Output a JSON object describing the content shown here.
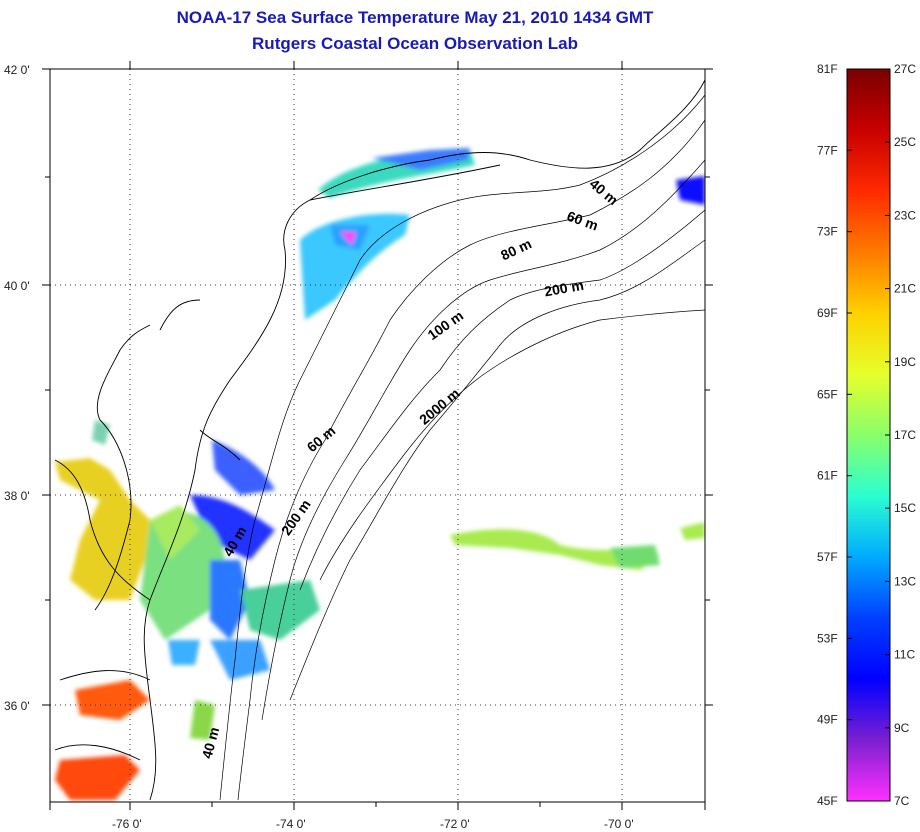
{
  "title_line1": "NOAA-17 Sea Surface Temperature May 21, 2010 1434 GMT",
  "title_line2": "Rutgers Coastal Ocean Observation Lab",
  "map": {
    "lon_ticks": [
      "-76 0'",
      "-74 0'",
      "-72 0'",
      "-70 0'"
    ],
    "lat_ticks": [
      "42 0'",
      "40 0'",
      "38 0'",
      "36 0'"
    ],
    "lon_range": [
      -77,
      -69
    ],
    "lat_range": [
      35,
      42
    ],
    "gridlines": true,
    "contour_labels": [
      "40 m",
      "60 m",
      "80 m",
      "200 m",
      "100 m",
      "2000 m",
      "60 m",
      "200 m",
      "40 m",
      "40 m"
    ]
  },
  "colorbar": {
    "fahrenheit_labels": [
      "81F",
      "77F",
      "73F",
      "69F",
      "65F",
      "61F",
      "57F",
      "53F",
      "49F",
      "45F"
    ],
    "celsius_labels": [
      "27C",
      "25C",
      "23C",
      "21C",
      "19C",
      "17C",
      "15C",
      "13C",
      "11C",
      "9C",
      "7C"
    ],
    "colors": [
      "#7a0000",
      "#c80000",
      "#ff2a00",
      "#ff7a00",
      "#ffd000",
      "#e6ff2a",
      "#8aff6a",
      "#2affd0",
      "#00aaff",
      "#0040ff",
      "#0000ff",
      "#7a20d0",
      "#ff30ff"
    ]
  }
}
